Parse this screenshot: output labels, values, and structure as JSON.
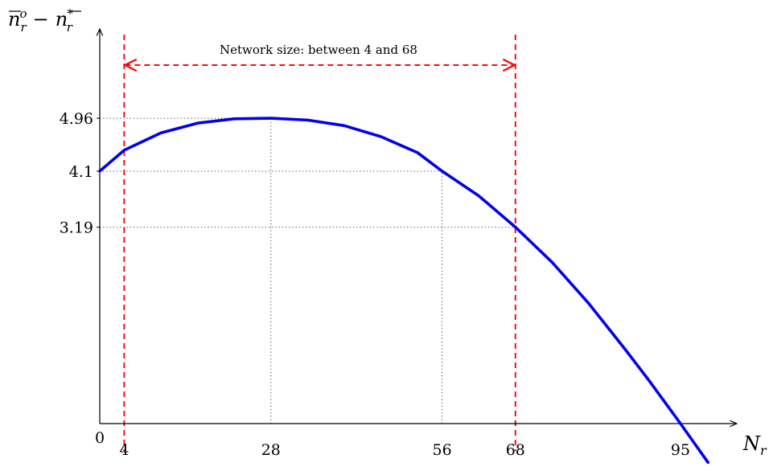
{
  "chart_data": {
    "type": "line",
    "title": "",
    "xlabel": "N",
    "xlabel_sub": "r",
    "ylabel_parts": {
      "a_sup": "o",
      "a_sub": "r",
      "minus": "−",
      "b_sup": "*",
      "b_sub": "r",
      "base": "n"
    },
    "origin_label": "0",
    "xlim": [
      0,
      100
    ],
    "ylim": [
      0,
      5.8
    ],
    "x_ticks": [
      4,
      28,
      56,
      68,
      95
    ],
    "y_ticks": [
      3.19,
      4.1,
      4.96
    ],
    "x_tick_labels": [
      "4",
      "28",
      "56",
      "68",
      "95"
    ],
    "y_tick_labels": [
      "3.19",
      "4.1",
      "4.96"
    ],
    "series": [
      {
        "color": "#0000ee",
        "points": [
          [
            0,
            4.1
          ],
          [
            4,
            4.44
          ],
          [
            10,
            4.72
          ],
          [
            16,
            4.88
          ],
          [
            22,
            4.95
          ],
          [
            28,
            4.96
          ],
          [
            34,
            4.93
          ],
          [
            40,
            4.84
          ],
          [
            46,
            4.66
          ],
          [
            52,
            4.4
          ],
          [
            56,
            4.1
          ],
          [
            62,
            3.7
          ],
          [
            68,
            3.19
          ],
          [
            74,
            2.62
          ],
          [
            80,
            1.95
          ],
          [
            86,
            1.2
          ],
          [
            90,
            0.68
          ],
          [
            95,
            0.0
          ],
          [
            99.5,
            -0.63
          ]
        ]
      }
    ],
    "guide_lines": [
      {
        "kind": "vertical-dotted",
        "x": 28,
        "y_to": 4.96
      },
      {
        "kind": "vertical-dotted",
        "x": 56,
        "y_to": 4.1
      },
      {
        "kind": "horizontal-dotted",
        "y": 4.96,
        "x_to": 28
      },
      {
        "kind": "horizontal-dotted",
        "y": 4.1,
        "x_to": 56
      },
      {
        "kind": "horizontal-dotted",
        "y": 3.19,
        "x_to": 68
      }
    ],
    "bounds": {
      "x_min": 4,
      "x_max": 68,
      "color": "#ee1111"
    },
    "annotation": "Network size: between 4 and 68",
    "grid": false,
    "legend": "none"
  }
}
